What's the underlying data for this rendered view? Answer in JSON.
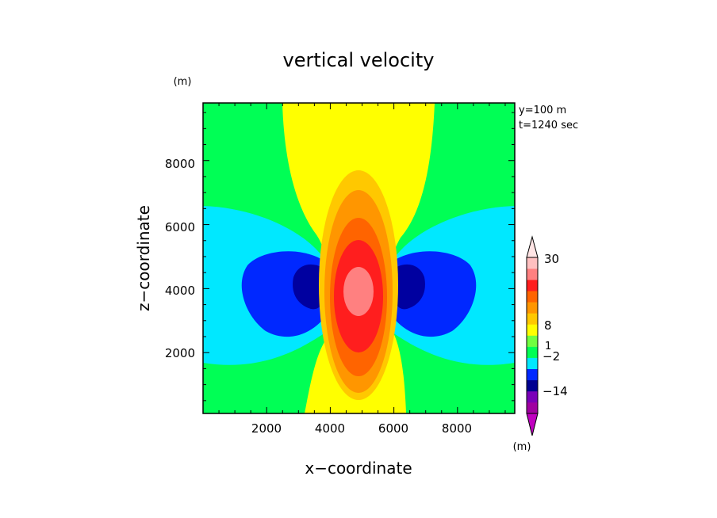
{
  "chart_data": {
    "type": "heatmap",
    "title": "vertical velocity",
    "xlabel": "x−coordinate",
    "ylabel": "z−coordinate",
    "y_unit_label": "(m)",
    "annotations": [
      "y=100 m",
      "t=1240 sec"
    ],
    "xlim": [
      0,
      9800
    ],
    "ylim": [
      100,
      9800
    ],
    "x_ticks": [
      "2000",
      "4000",
      "6000",
      "8000"
    ],
    "y_ticks": [
      "2000",
      "4000",
      "6000",
      "8000"
    ],
    "grid": false,
    "colorbar": {
      "unit_label": "(m)",
      "tick_labels": [
        "30",
        "8",
        "1",
        "−2",
        "−14"
      ],
      "colors": [
        "#a000a0",
        "#7a00b8",
        "#000090",
        "#0028ff",
        "#00e8ff",
        "#00ff55",
        "#70ff40",
        "#ffff00",
        "#ffc800",
        "#ff9600",
        "#ff6400",
        "#ff1e1e",
        "#ff8080",
        "#ffc0c0"
      ]
    },
    "field_levels": [
      {
        "name": "green",
        "color": "#00ff55"
      },
      {
        "name": "cyan",
        "color": "#00e8ff"
      },
      {
        "name": "blue",
        "color": "#0028ff"
      },
      {
        "name": "dark-blue",
        "color": "#0000a0"
      },
      {
        "name": "yellow",
        "color": "#ffff00"
      },
      {
        "name": "amber",
        "color": "#ffc800"
      },
      {
        "name": "orange",
        "color": "#ff9600"
      },
      {
        "name": "dark-orange",
        "color": "#ff6400"
      },
      {
        "name": "red",
        "color": "#ff1e1e"
      },
      {
        "name": "pink",
        "color": "#ff8080"
      }
    ]
  }
}
